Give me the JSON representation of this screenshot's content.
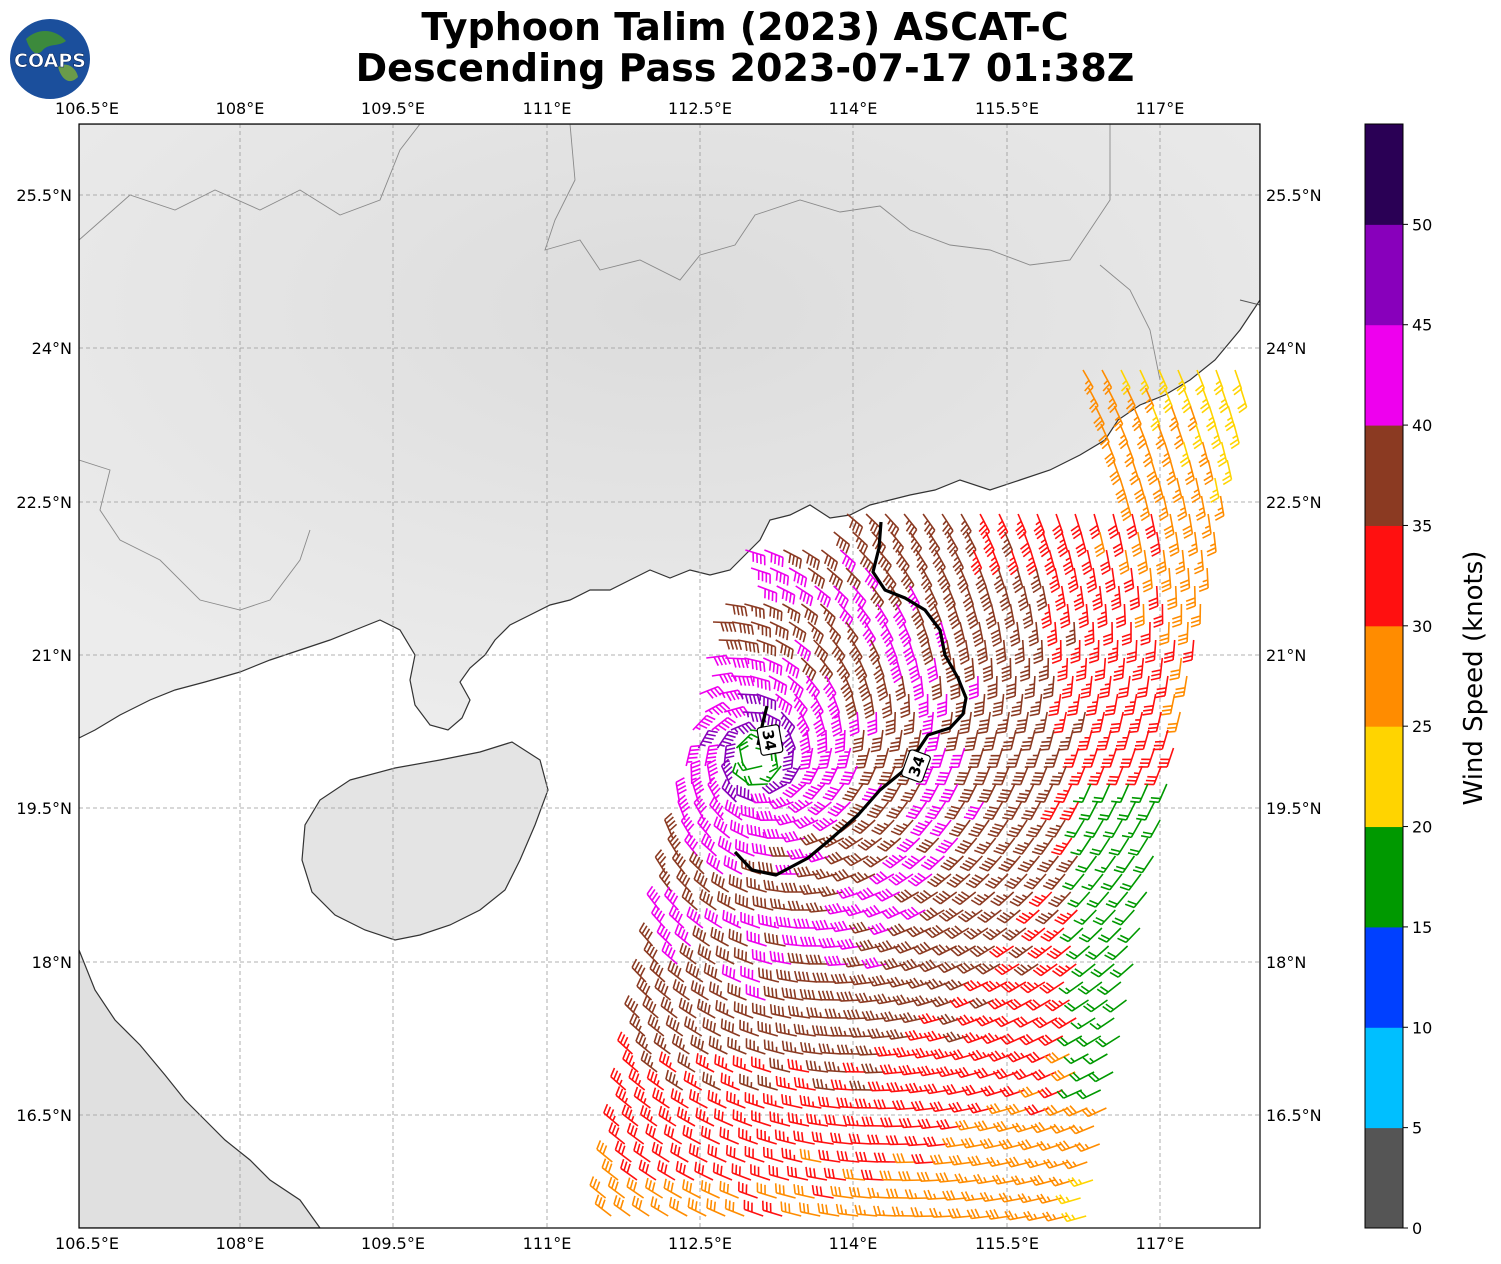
{
  "title_line1": "Typhoon Talim (2023) ASCAT-C",
  "title_line2": "Descending Pass 2023-07-17 01:38Z",
  "logo_text": "COAPS",
  "lon_ticks": [
    "106.5°E",
    "108°E",
    "109.5°E",
    "111°E",
    "112.5°E",
    "114°E",
    "115.5°E",
    "117°E"
  ],
  "lat_ticks": [
    "25.5°N",
    "24°N",
    "22.5°N",
    "21°N",
    "19.5°N",
    "18°N",
    "16.5°N"
  ],
  "contour_label": "34",
  "colorbar": {
    "label": "Wind Speed (knots)",
    "ticks": [
      "0",
      "5",
      "10",
      "15",
      "20",
      "25",
      "30",
      "35",
      "40",
      "45",
      "50"
    ],
    "colors": [
      "#555555",
      "#00bfff",
      "#0040ff",
      "#009900",
      "#ffd400",
      "#ff8c00",
      "#ff1010",
      "#8b3a22",
      "#ee00ee",
      "#8800bb",
      "#2a0055"
    ]
  },
  "map_extent": {
    "lon": [
      106.5,
      118.0
    ],
    "lat": [
      15.3,
      26.1
    ]
  },
  "storm_center": {
    "lon": 113.1,
    "lat": 19.9
  },
  "colors": {
    "land": "#e6e6e6",
    "ocean": "#ffffff",
    "coast": "#333333",
    "wind34_contour": "#000000"
  }
}
